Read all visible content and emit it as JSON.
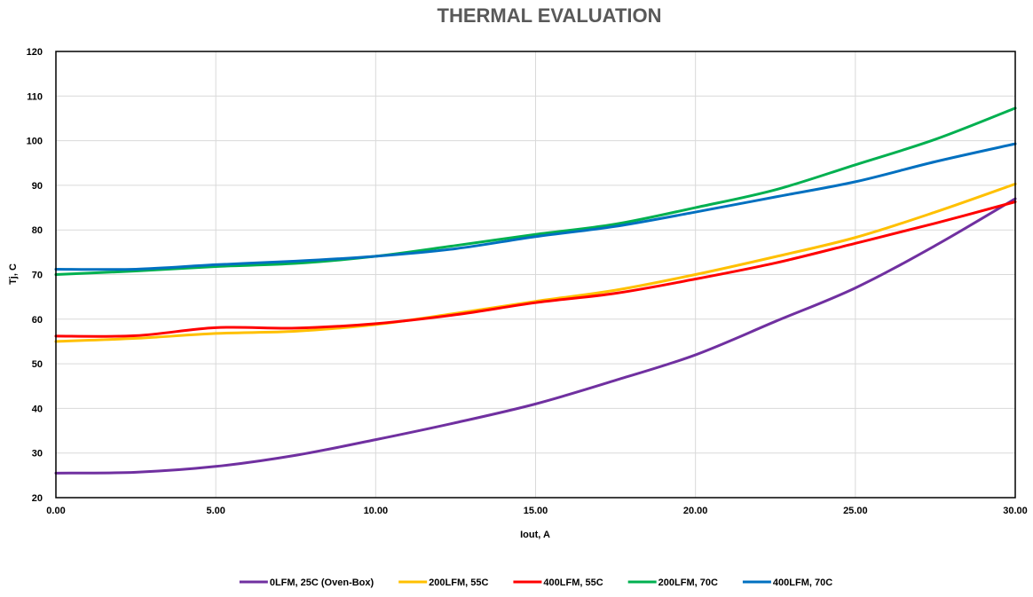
{
  "chart_data": {
    "type": "line",
    "title": "THERMAL EVALUATION",
    "xlabel": "Iout, A",
    "ylabel": "Tj, C",
    "xlim": [
      0,
      30
    ],
    "ylim": [
      20,
      120
    ],
    "xticks": [
      0,
      5,
      10,
      15,
      20,
      25,
      30
    ],
    "xtick_labels": [
      "0.00",
      "5.00",
      "10.00",
      "15.00",
      "20.00",
      "25.00",
      "30.00"
    ],
    "yticks": [
      20,
      30,
      40,
      50,
      60,
      70,
      80,
      90,
      100,
      110,
      120
    ],
    "ytick_labels": [
      "20",
      "30",
      "40",
      "50",
      "60",
      "70",
      "80",
      "90",
      "100",
      "110",
      "120"
    ],
    "grid": true,
    "legend_position": "bottom",
    "series": [
      {
        "name": "0LFM, 25C (Oven-Box)",
        "color": "#7030a0",
        "x": [
          0,
          2.5,
          5,
          7.5,
          10,
          12.5,
          15,
          17.5,
          20,
          22.5,
          25,
          27.5,
          30
        ],
        "y": [
          25.5,
          25.7,
          27,
          29.5,
          33,
          36.8,
          41,
          46.3,
          52,
          59.5,
          67,
          76.5,
          87
        ]
      },
      {
        "name": "200LFM, 55C",
        "color": "#ffc000",
        "x": [
          0,
          2.5,
          5,
          7.5,
          10,
          12.5,
          15,
          17.5,
          20,
          22.5,
          25,
          27.5,
          30
        ],
        "y": [
          55,
          55.7,
          56.8,
          57.3,
          58.8,
          61.3,
          64,
          66.5,
          70,
          74,
          78.3,
          84,
          90.3
        ]
      },
      {
        "name": "400LFM, 55C",
        "color": "#ff0000",
        "x": [
          0,
          2.5,
          5,
          7.5,
          10,
          12.5,
          15,
          17.5,
          20,
          22.5,
          25,
          27.5,
          30
        ],
        "y": [
          56.2,
          56.3,
          58.1,
          58,
          59,
          61,
          63.7,
          65.8,
          69,
          72.6,
          77,
          81.5,
          86.3
        ]
      },
      {
        "name": "200LFM, 70C",
        "color": "#00b050",
        "x": [
          0,
          2.5,
          5,
          7.5,
          10,
          12.5,
          15,
          17.5,
          20,
          22.5,
          25,
          27.5,
          30
        ],
        "y": [
          70,
          70.8,
          71.8,
          72.5,
          74.1,
          76.5,
          79,
          81.3,
          85,
          89,
          94.6,
          100.3,
          107.3
        ]
      },
      {
        "name": "400LFM, 70C",
        "color": "#0070c0",
        "x": [
          0,
          2.5,
          5,
          7.5,
          10,
          12.5,
          15,
          17.5,
          20,
          22.5,
          25,
          27.5,
          30
        ],
        "y": [
          71.2,
          71.2,
          72.2,
          73,
          74.1,
          75.8,
          78.5,
          80.8,
          84,
          87.4,
          90.8,
          95.3,
          99.3
        ]
      }
    ]
  }
}
